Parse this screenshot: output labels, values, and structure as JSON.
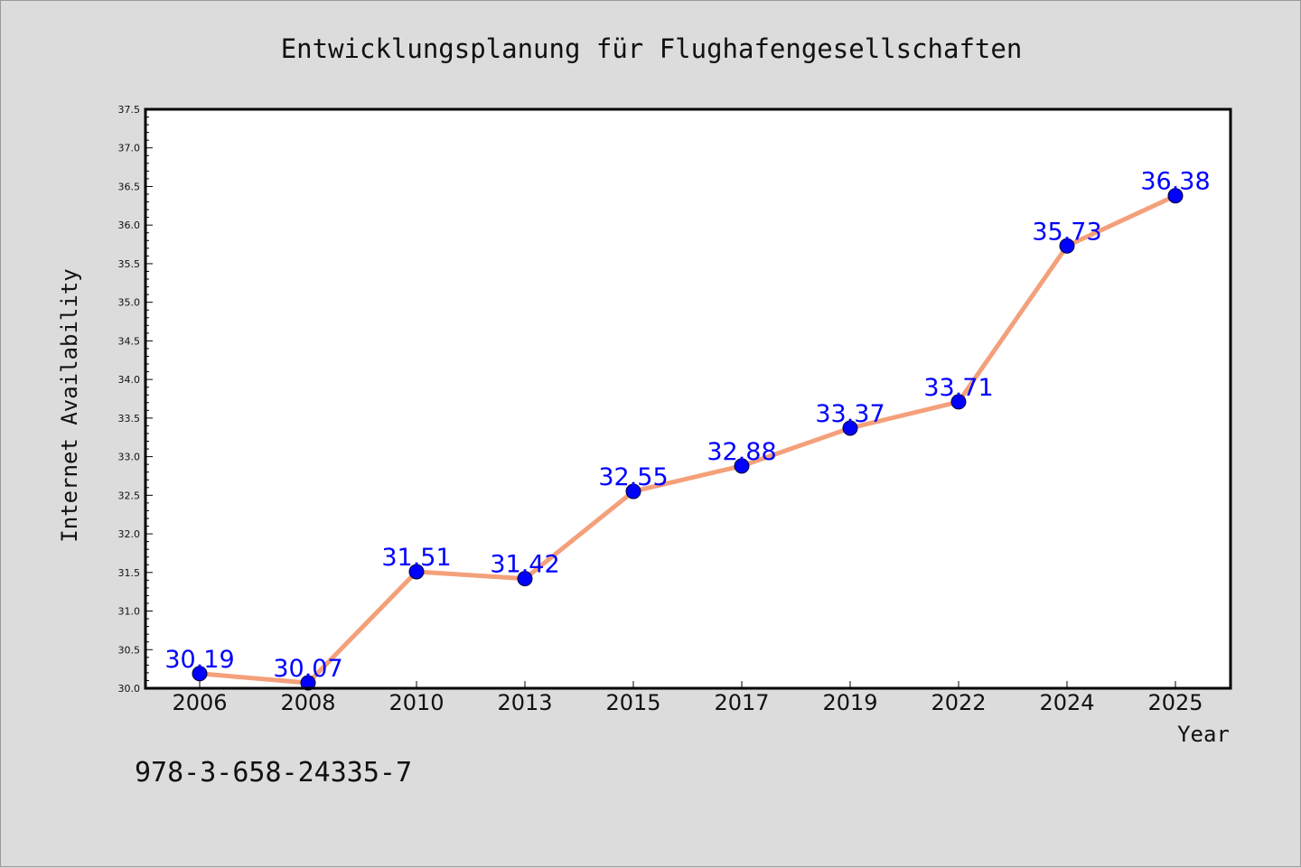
{
  "chart_data": {
    "type": "line",
    "title": "Entwicklungsplanung für Flughafengesellschaften",
    "xlabel": "Year",
    "ylabel": "Internet Availability",
    "categories": [
      "2006",
      "2008",
      "2010",
      "2013",
      "2015",
      "2017",
      "2019",
      "2022",
      "2024",
      "2025"
    ],
    "series": [
      {
        "values": [
          30.19,
          30.07,
          31.51,
          31.42,
          32.55,
          32.88,
          33.37,
          33.71,
          35.73,
          36.38
        ],
        "data_labels": [
          "30.19",
          "30.07",
          "31.51",
          "31.42",
          "32.55",
          "32.88",
          "33.37",
          "33.71",
          "35.73",
          "36.38"
        ],
        "line_color": "#f4a07a",
        "marker_color": "#0000ff"
      }
    ],
    "ylim": [
      30.0,
      37.5
    ],
    "yticks": [
      "30.0",
      "30.5",
      "31.0",
      "31.5",
      "32.0",
      "32.5",
      "33.0",
      "33.5",
      "34.0",
      "34.5",
      "35.0",
      "35.5",
      "36.0",
      "36.5",
      "37.0",
      "37.5"
    ],
    "grid": false,
    "legend": "none",
    "annotation": "978-3-658-24335-7",
    "colors": {
      "background": "#dcdcdc",
      "plot_background": "#ffffff",
      "data_label": "#0000ff"
    }
  }
}
